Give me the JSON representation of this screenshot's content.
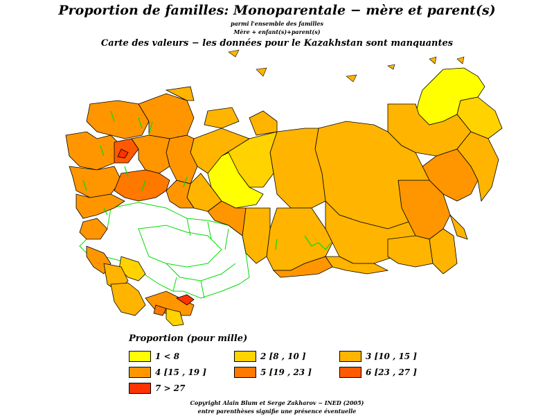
{
  "header": {
    "title": "Proportion de familles: Monoparentale  −  mère et parent(s)",
    "subtitle_1": "parmi l'ensemble des familles",
    "subtitle_2": "Mère + enfant(s)+parent(s)",
    "subtitle_3": "Carte des valeurs − les données pour le Kazakhstan sont manquantes"
  },
  "legend": {
    "title": "Proportion  (pour mille)",
    "items": [
      {
        "label": "1  <  8",
        "color": "#ffff00"
      },
      {
        "label": "2  [8  ,  10 ]",
        "color": "#ffd200"
      },
      {
        "label": "3  [10  ,  15 ]",
        "color": "#ffb400"
      },
      {
        "label": "4  [15  ,  19 ]",
        "color": "#ff9600"
      },
      {
        "label": "5  [19  ,  23 ]",
        "color": "#ff7800"
      },
      {
        "label": "6  [23  ,  27 ]",
        "color": "#ff5a00"
      },
      {
        "label": "7  >  27",
        "color": "#ff3200"
      }
    ]
  },
  "footer": {
    "line1": "Copyright  Alain  Blum  et  Serge  Zakharov  −  INED  (2005)",
    "line2": "entre  parenthèses  signifie  une  présence  éventuelle"
  },
  "map": {
    "border_color": "#000000",
    "missing_data_color": "#ffffff",
    "missing_data_border_color": "#00dd00",
    "sea_color": "#ffffff"
  }
}
